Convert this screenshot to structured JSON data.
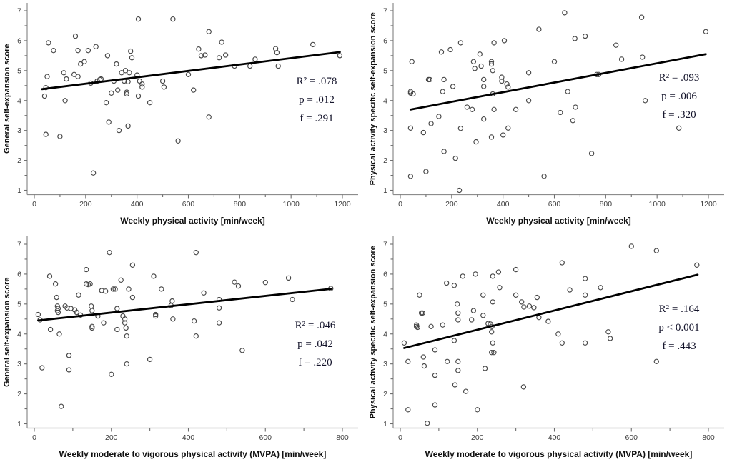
{
  "figure": {
    "title": "Self-expansion vs physical activity scatter panels",
    "background": "#ffffff",
    "marker_color": "#474747",
    "regression_color": "#000000",
    "axis_color": "#8c8c8c",
    "tick_color": "#6e6e6e",
    "tick_label_color": "#3d3d3d",
    "axis_title_color": "#111111",
    "stats_color": "#14142b"
  },
  "chart_data": [
    {
      "type": "scatter",
      "panel": "top-left",
      "xlabel": "Weekly physical activity [min/week]",
      "ylabel": "General self-expansion score",
      "xlim": [
        0,
        1200
      ],
      "ylim": [
        1,
        7
      ],
      "xticks": [
        0,
        200,
        400,
        600,
        800,
        1000,
        1200
      ],
      "x_minor_step": 100,
      "yticks": [
        1,
        2,
        3,
        4,
        5,
        6,
        7
      ],
      "y_minor_step": 0.5,
      "grid": false,
      "legend": null,
      "stats": {
        "lines": [
          "R² = .078",
          "p = .012",
          "f = .291"
        ],
        "x": 443,
        "y": 118
      },
      "regression": {
        "x": [
          30,
          1190
        ],
        "y": [
          4.38,
          5.62
        ]
      },
      "points": [
        [
          40,
          4.15
        ],
        [
          45,
          4.43
        ],
        [
          45,
          2.87
        ],
        [
          50,
          4.8
        ],
        [
          55,
          5.93
        ],
        [
          75,
          5.67
        ],
        [
          100,
          2.8
        ],
        [
          115,
          4.93
        ],
        [
          120,
          4.0
        ],
        [
          125,
          4.72
        ],
        [
          155,
          4.87
        ],
        [
          160,
          6.15
        ],
        [
          170,
          5.67
        ],
        [
          170,
          4.8
        ],
        [
          180,
          5.22
        ],
        [
          195,
          5.3
        ],
        [
          210,
          5.67
        ],
        [
          220,
          4.58
        ],
        [
          230,
          1.58
        ],
        [
          240,
          5.8
        ],
        [
          245,
          4.65
        ],
        [
          255,
          4.7
        ],
        [
          260,
          4.72
        ],
        [
          280,
          3.93
        ],
        [
          285,
          5.5
        ],
        [
          290,
          3.28
        ],
        [
          300,
          4.25
        ],
        [
          310,
          4.65
        ],
        [
          320,
          5.22
        ],
        [
          325,
          4.35
        ],
        [
          330,
          3.0
        ],
        [
          340,
          4.93
        ],
        [
          350,
          4.65
        ],
        [
          355,
          5.0
        ],
        [
          360,
          4.28
        ],
        [
          360,
          4.22
        ],
        [
          365,
          3.15
        ],
        [
          365,
          4.63
        ],
        [
          370,
          4.93
        ],
        [
          375,
          5.65
        ],
        [
          380,
          5.43
        ],
        [
          400,
          4.85
        ],
        [
          405,
          6.72
        ],
        [
          405,
          4.15
        ],
        [
          410,
          4.65
        ],
        [
          420,
          4.55
        ],
        [
          420,
          4.45
        ],
        [
          450,
          3.93
        ],
        [
          500,
          4.65
        ],
        [
          505,
          4.45
        ],
        [
          540,
          6.72
        ],
        [
          560,
          2.65
        ],
        [
          600,
          4.87
        ],
        [
          620,
          4.35
        ],
        [
          640,
          5.72
        ],
        [
          650,
          5.5
        ],
        [
          665,
          5.52
        ],
        [
          680,
          6.3
        ],
        [
          680,
          3.45
        ],
        [
          720,
          5.43
        ],
        [
          730,
          5.95
        ],
        [
          745,
          5.52
        ],
        [
          780,
          5.15
        ],
        [
          840,
          5.15
        ],
        [
          860,
          5.38
        ],
        [
          940,
          5.73
        ],
        [
          945,
          5.6
        ],
        [
          950,
          5.15
        ],
        [
          1085,
          5.87
        ],
        [
          1190,
          5.5
        ]
      ]
    },
    {
      "type": "scatter",
      "panel": "top-right",
      "xlabel": "Weekly physical activity [min/week]",
      "ylabel": "Physical activity specific self-expansion score",
      "xlim": [
        0,
        1200
      ],
      "ylim": [
        1,
        7
      ],
      "xticks": [
        0,
        200,
        400,
        600,
        800,
        1000,
        1200
      ],
      "x_minor_step": 100,
      "yticks": [
        1,
        2,
        3,
        4,
        5,
        6,
        7
      ],
      "y_minor_step": 0.5,
      "grid": false,
      "legend": null,
      "stats": {
        "lines": [
          "R² = .093",
          "p = .006",
          "f = .320"
        ],
        "x": 438,
        "y": 113
      },
      "regression": {
        "x": [
          40,
          1190
        ],
        "y": [
          3.7,
          5.55
        ]
      },
      "points": [
        [
          40,
          4.25
        ],
        [
          40,
          4.3
        ],
        [
          40,
          3.08
        ],
        [
          40,
          1.47
        ],
        [
          45,
          5.3
        ],
        [
          50,
          4.22
        ],
        [
          90,
          2.93
        ],
        [
          100,
          1.63
        ],
        [
          110,
          4.7
        ],
        [
          115,
          4.7
        ],
        [
          120,
          3.23
        ],
        [
          150,
          3.47
        ],
        [
          160,
          5.62
        ],
        [
          165,
          4.3
        ],
        [
          170,
          4.7
        ],
        [
          170,
          2.3
        ],
        [
          195,
          5.7
        ],
        [
          205,
          4.47
        ],
        [
          215,
          2.07
        ],
        [
          230,
          1.0
        ],
        [
          235,
          5.93
        ],
        [
          235,
          3.07
        ],
        [
          260,
          3.78
        ],
        [
          280,
          3.7
        ],
        [
          285,
          5.3
        ],
        [
          290,
          5.07
        ],
        [
          295,
          2.62
        ],
        [
          310,
          5.55
        ],
        [
          315,
          5.15
        ],
        [
          325,
          4.47
        ],
        [
          325,
          4.7
        ],
        [
          325,
          3.38
        ],
        [
          355,
          5.3
        ],
        [
          355,
          5.22
        ],
        [
          360,
          5.0
        ],
        [
          360,
          4.22
        ],
        [
          355,
          2.78
        ],
        [
          365,
          5.93
        ],
        [
          365,
          3.7
        ],
        [
          395,
          4.78
        ],
        [
          395,
          4.65
        ],
        [
          400,
          2.85
        ],
        [
          405,
          6.0
        ],
        [
          415,
          4.55
        ],
        [
          420,
          4.45
        ],
        [
          420,
          3.08
        ],
        [
          450,
          3.7
        ],
        [
          500,
          4.93
        ],
        [
          500,
          4.0
        ],
        [
          540,
          6.38
        ],
        [
          560,
          1.47
        ],
        [
          600,
          5.3
        ],
        [
          623,
          3.6
        ],
        [
          640,
          6.93
        ],
        [
          652,
          4.3
        ],
        [
          672,
          3.33
        ],
        [
          680,
          6.07
        ],
        [
          682,
          3.78
        ],
        [
          720,
          6.15
        ],
        [
          745,
          2.23
        ],
        [
          765,
          4.87
        ],
        [
          773,
          4.87
        ],
        [
          840,
          5.85
        ],
        [
          862,
          5.38
        ],
        [
          940,
          6.78
        ],
        [
          943,
          5.45
        ],
        [
          954,
          4.0
        ],
        [
          1085,
          3.08
        ],
        [
          1190,
          6.3
        ]
      ]
    },
    {
      "type": "scatter",
      "panel": "bottom-left",
      "xlabel": "Weekly moderate to vigorous physical activity (MVPA) [min/week]",
      "ylabel": "General self-expansion score",
      "xlim": [
        0,
        800
      ],
      "ylim": [
        1,
        7
      ],
      "xticks": [
        0,
        200,
        400,
        600,
        800
      ],
      "x_minor_step": 100,
      "yticks": [
        1,
        2,
        3,
        4,
        5,
        6,
        7
      ],
      "y_minor_step": 0.5,
      "grid": false,
      "legend": null,
      "stats": {
        "lines": [
          "R² = .046",
          "p = .042",
          "f = .220"
        ],
        "x": 441,
        "y": 133
      },
      "regression": {
        "x": [
          10,
          772
        ],
        "y": [
          4.45,
          5.51
        ]
      },
      "points": [
        [
          10,
          4.65
        ],
        [
          15,
          4.47
        ],
        [
          20,
          2.87
        ],
        [
          40,
          5.93
        ],
        [
          42,
          4.15
        ],
        [
          55,
          5.67
        ],
        [
          58,
          5.22
        ],
        [
          60,
          4.93
        ],
        [
          60,
          4.78
        ],
        [
          62,
          4.85
        ],
        [
          62,
          4.72
        ],
        [
          65,
          4.0
        ],
        [
          70,
          1.58
        ],
        [
          80,
          4.93
        ],
        [
          85,
          4.87
        ],
        [
          90,
          3.28
        ],
        [
          90,
          2.8
        ],
        [
          95,
          4.85
        ],
        [
          105,
          4.8
        ],
        [
          110,
          4.72
        ],
        [
          115,
          5.3
        ],
        [
          120,
          4.63
        ],
        [
          135,
          6.15
        ],
        [
          135,
          5.67
        ],
        [
          140,
          5.65
        ],
        [
          145,
          5.67
        ],
        [
          148,
          4.93
        ],
        [
          150,
          4.78
        ],
        [
          150,
          4.25
        ],
        [
          150,
          4.2
        ],
        [
          165,
          4.6
        ],
        [
          175,
          5.45
        ],
        [
          180,
          4.37
        ],
        [
          185,
          5.43
        ],
        [
          195,
          6.72
        ],
        [
          200,
          2.65
        ],
        [
          205,
          5.5
        ],
        [
          210,
          5.5
        ],
        [
          215,
          4.85
        ],
        [
          215,
          4.15
        ],
        [
          225,
          5.8
        ],
        [
          230,
          4.6
        ],
        [
          235,
          4.5
        ],
        [
          235,
          4.37
        ],
        [
          238,
          4.2
        ],
        [
          240,
          3.93
        ],
        [
          240,
          3.0
        ],
        [
          245,
          5.5
        ],
        [
          255,
          6.3
        ],
        [
          255,
          5.22
        ],
        [
          300,
          3.15
        ],
        [
          310,
          5.93
        ],
        [
          315,
          4.65
        ],
        [
          315,
          4.6
        ],
        [
          330,
          5.5
        ],
        [
          355,
          4.95
        ],
        [
          358,
          5.1
        ],
        [
          360,
          4.5
        ],
        [
          415,
          4.43
        ],
        [
          420,
          6.72
        ],
        [
          420,
          3.93
        ],
        [
          440,
          5.37
        ],
        [
          480,
          5.15
        ],
        [
          480,
          4.87
        ],
        [
          480,
          4.37
        ],
        [
          520,
          5.73
        ],
        [
          530,
          5.6
        ],
        [
          540,
          3.45
        ],
        [
          600,
          5.72
        ],
        [
          660,
          5.87
        ],
        [
          670,
          5.15
        ],
        [
          770,
          5.52
        ]
      ]
    },
    {
      "type": "scatter",
      "panel": "bottom-right",
      "xlabel": "Weekly moderate to vigorous physical activity (MVPA) [min/week]",
      "ylabel": "Physical activity specific self-expansion score",
      "xlim": [
        0,
        800
      ],
      "ylim": [
        1,
        7
      ],
      "xticks": [
        0,
        200,
        400,
        600,
        800
      ],
      "x_minor_step": 100,
      "yticks": [
        1,
        2,
        3,
        4,
        5,
        6,
        7
      ],
      "y_minor_step": 0.5,
      "grid": false,
      "legend": null,
      "stats": {
        "lines": [
          "R² = .164",
          "p < 0.001",
          "f = .443"
        ],
        "x": 438,
        "y": 110
      },
      "regression": {
        "x": [
          10,
          772
        ],
        "y": [
          3.53,
          5.98
        ]
      },
      "points": [
        [
          10,
          3.7
        ],
        [
          20,
          3.08
        ],
        [
          20,
          1.47
        ],
        [
          42,
          4.3
        ],
        [
          42,
          4.25
        ],
        [
          45,
          4.22
        ],
        [
          50,
          5.3
        ],
        [
          55,
          4.7
        ],
        [
          58,
          4.7
        ],
        [
          60,
          3.23
        ],
        [
          62,
          2.93
        ],
        [
          70,
          1.02
        ],
        [
          80,
          4.25
        ],
        [
          90,
          3.47
        ],
        [
          90,
          2.62
        ],
        [
          90,
          1.63
        ],
        [
          110,
          4.3
        ],
        [
          120,
          5.7
        ],
        [
          122,
          3.08
        ],
        [
          140,
          5.62
        ],
        [
          140,
          3.78
        ],
        [
          142,
          2.3
        ],
        [
          148,
          5.0
        ],
        [
          150,
          4.7
        ],
        [
          150,
          4.47
        ],
        [
          150,
          3.08
        ],
        [
          150,
          2.78
        ],
        [
          162,
          5.93
        ],
        [
          170,
          2.08
        ],
        [
          185,
          4.47
        ],
        [
          190,
          4.78
        ],
        [
          195,
          6.0
        ],
        [
          200,
          1.47
        ],
        [
          215,
          5.3
        ],
        [
          215,
          4.62
        ],
        [
          220,
          2.85
        ],
        [
          228,
          4.35
        ],
        [
          234,
          4.33
        ],
        [
          237,
          4.07
        ],
        [
          238,
          4.25
        ],
        [
          240,
          5.93
        ],
        [
          240,
          5.07
        ],
        [
          240,
          3.7
        ],
        [
          237,
          3.38
        ],
        [
          243,
          3.38
        ],
        [
          255,
          6.07
        ],
        [
          258,
          5.55
        ],
        [
          300,
          6.15
        ],
        [
          300,
          5.3
        ],
        [
          315,
          5.07
        ],
        [
          321,
          4.9
        ],
        [
          320,
          2.23
        ],
        [
          335,
          4.93
        ],
        [
          347,
          4.88
        ],
        [
          355,
          5.22
        ],
        [
          360,
          4.55
        ],
        [
          384,
          4.42
        ],
        [
          410,
          4.0
        ],
        [
          420,
          6.38
        ],
        [
          420,
          3.7
        ],
        [
          440,
          5.47
        ],
        [
          480,
          5.85
        ],
        [
          480,
          5.3
        ],
        [
          480,
          3.7
        ],
        [
          520,
          5.55
        ],
        [
          540,
          4.07
        ],
        [
          545,
          3.85
        ],
        [
          600,
          6.93
        ],
        [
          665,
          6.78
        ],
        [
          665,
          3.08
        ],
        [
          770,
          6.3
        ]
      ]
    }
  ]
}
